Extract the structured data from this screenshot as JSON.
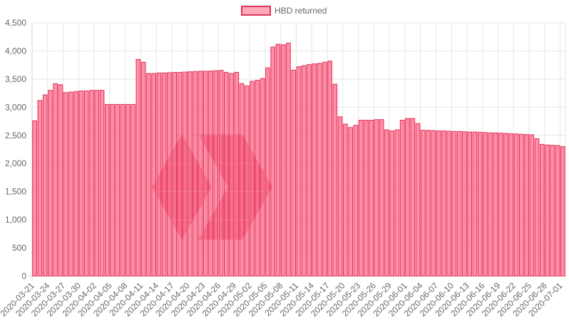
{
  "chart_data": {
    "type": "bar",
    "legend": {
      "label": "HBD returned",
      "position": "top"
    },
    "grid": true,
    "ylim": [
      0,
      4500
    ],
    "y_ticks": [
      "0",
      "500",
      "1,000",
      "1,500",
      "2,000",
      "2,500",
      "3,000",
      "3,500",
      "4,000",
      "4,500"
    ],
    "y_tick_values": [
      0,
      500,
      1000,
      1500,
      2000,
      2500,
      3000,
      3500,
      4000,
      4500
    ],
    "categories": [
      "2020-03-21",
      "2020-03-22",
      "2020-03-23",
      "2020-03-24",
      "2020-03-25",
      "2020-03-26",
      "2020-03-27",
      "2020-03-28",
      "2020-03-29",
      "2020-03-30",
      "2020-03-31",
      "2020-04-01",
      "2020-04-02",
      "2020-04-03",
      "2020-04-04",
      "2020-04-05",
      "2020-04-06",
      "2020-04-07",
      "2020-04-08",
      "2020-04-09",
      "2020-04-10",
      "2020-04-11",
      "2020-04-12",
      "2020-04-13",
      "2020-04-14",
      "2020-04-15",
      "2020-04-16",
      "2020-04-17",
      "2020-04-18",
      "2020-04-19",
      "2020-04-20",
      "2020-04-21",
      "2020-04-22",
      "2020-04-23",
      "2020-04-24",
      "2020-04-25",
      "2020-04-26",
      "2020-04-27",
      "2020-04-28",
      "2020-04-29",
      "2020-04-30",
      "2020-05-01",
      "2020-05-02",
      "2020-05-03",
      "2020-05-04",
      "2020-05-05",
      "2020-05-06",
      "2020-05-07",
      "2020-05-08",
      "2020-05-09",
      "2020-05-10",
      "2020-05-11",
      "2020-05-12",
      "2020-05-13",
      "2020-05-14",
      "2020-05-15",
      "2020-05-16",
      "2020-05-17",
      "2020-05-18",
      "2020-05-19",
      "2020-05-20",
      "2020-05-21",
      "2020-05-22",
      "2020-05-23",
      "2020-05-24",
      "2020-05-25",
      "2020-05-26",
      "2020-05-27",
      "2020-05-28",
      "2020-05-29",
      "2020-05-30",
      "2020-05-31",
      "2020-06-01",
      "2020-06-02",
      "2020-06-03",
      "2020-06-04",
      "2020-06-05",
      "2020-06-06",
      "2020-06-07",
      "2020-06-08",
      "2020-06-09",
      "2020-06-10",
      "2020-06-11",
      "2020-06-12",
      "2020-06-13",
      "2020-06-14",
      "2020-06-15",
      "2020-06-16",
      "2020-06-17",
      "2020-06-18",
      "2020-06-19",
      "2020-06-20",
      "2020-06-21",
      "2020-06-22",
      "2020-06-23",
      "2020-06-24",
      "2020-06-25",
      "2020-06-26",
      "2020-06-27",
      "2020-06-28",
      "2020-06-29",
      "2020-06-30",
      "2020-07-01"
    ],
    "series": [
      {
        "name": "HBD returned",
        "fill_color": "#ff6384",
        "border_color": "#e0325a",
        "values": [
          2760,
          3120,
          3220,
          3300,
          3420,
          3400,
          3260,
          3270,
          3280,
          3290,
          3290,
          3300,
          3300,
          3300,
          3050,
          3050,
          3050,
          3050,
          3050,
          3050,
          3850,
          3800,
          3600,
          3600,
          3610,
          3610,
          3615,
          3620,
          3620,
          3625,
          3630,
          3635,
          3640,
          3640,
          3645,
          3650,
          3655,
          3620,
          3600,
          3620,
          3420,
          3380,
          3460,
          3480,
          3510,
          3700,
          4070,
          4120,
          4110,
          4140,
          3660,
          3720,
          3740,
          3760,
          3770,
          3780,
          3800,
          3820,
          3410,
          2830,
          2700,
          2640,
          2680,
          2770,
          2770,
          2770,
          2780,
          2780,
          2600,
          2580,
          2600,
          2770,
          2800,
          2800,
          2710,
          2590,
          2590,
          2585,
          2580,
          2580,
          2575,
          2570,
          2570,
          2565,
          2560,
          2560,
          2555,
          2550,
          2545,
          2545,
          2540,
          2535,
          2530,
          2525,
          2520,
          2515,
          2510,
          2440,
          2340,
          2330,
          2325,
          2320,
          2300
        ]
      }
    ]
  },
  "colors": {
    "bar_fill": "#ff6384",
    "bar_border": "#e0325a",
    "grid": "#e6e6e6",
    "axis_text": "#666666",
    "watermark": "#e31337"
  },
  "watermark_icon": "hive-logo-icon"
}
